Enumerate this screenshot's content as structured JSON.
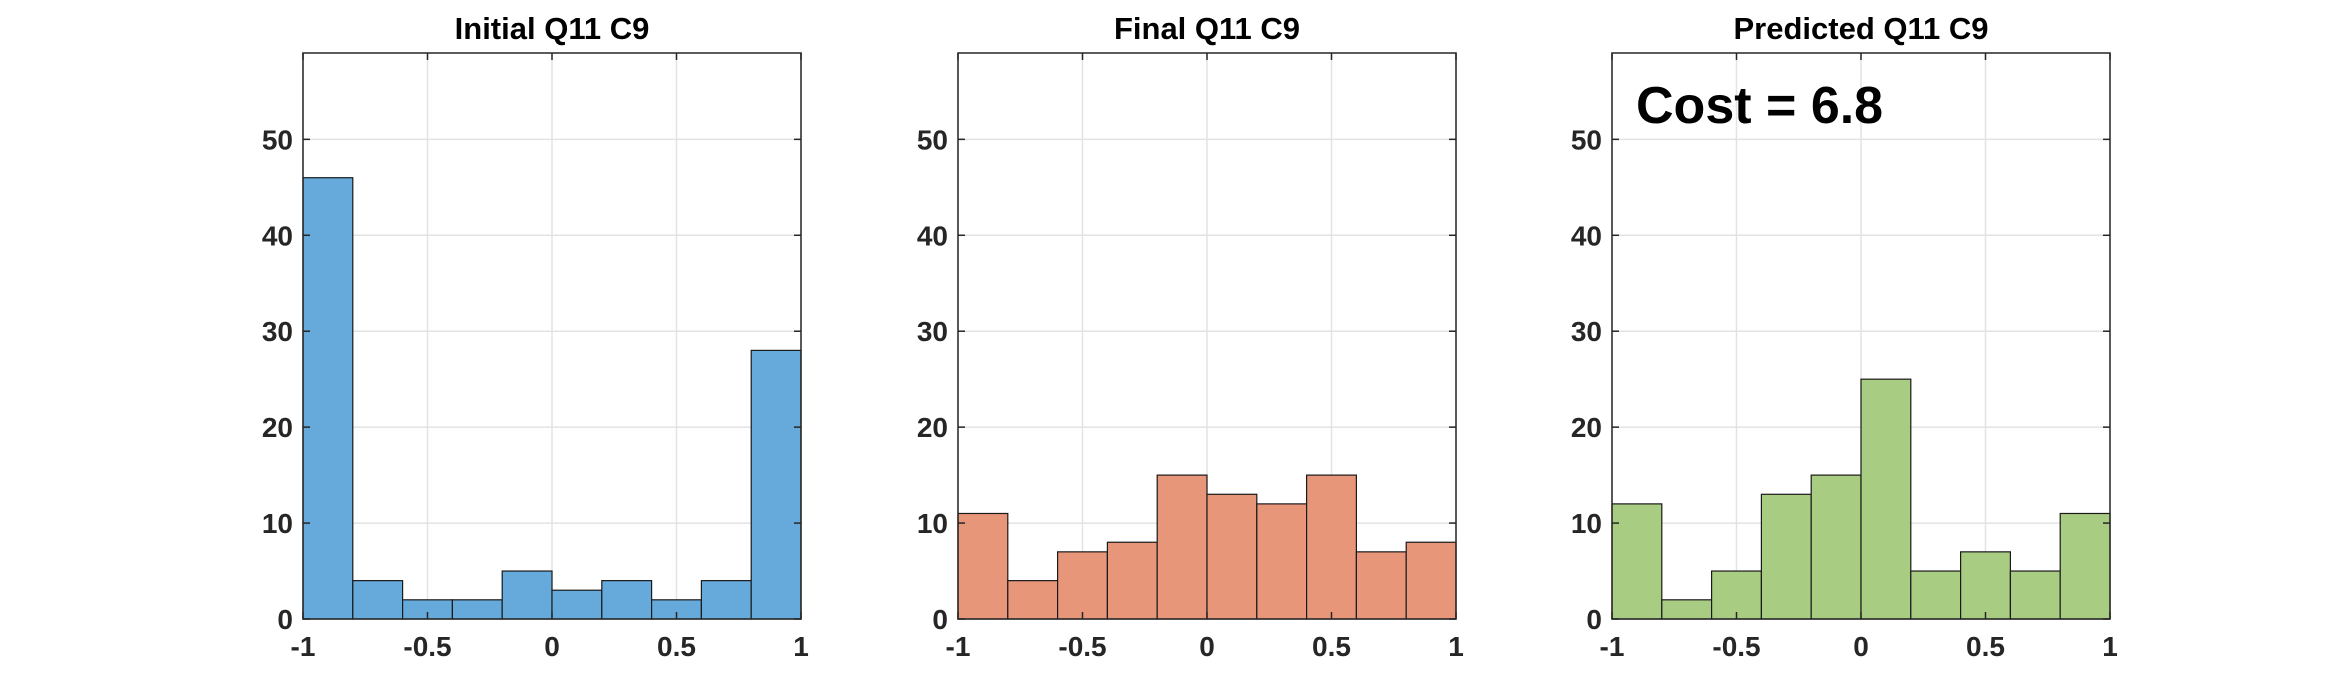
{
  "chart_data": [
    {
      "type": "bar",
      "title": "Initial Q11 C9",
      "bin_edges": [
        -1,
        -0.8,
        -0.6,
        -0.4,
        -0.2,
        0,
        0.2,
        0.4,
        0.6,
        0.8,
        1
      ],
      "values": [
        46,
        4,
        2,
        2,
        5,
        3,
        4,
        2,
        4,
        28
      ],
      "xlim": [
        -1,
        1
      ],
      "ylim": [
        0,
        59
      ],
      "xticks": [
        -1,
        -0.5,
        0,
        0.5,
        1
      ],
      "xtick_labels": [
        "-1",
        "-0.5",
        "0",
        "0.5",
        "1"
      ],
      "yticks": [
        0,
        10,
        20,
        30,
        40,
        50
      ],
      "ytick_labels": [
        "0",
        "10",
        "20",
        "30",
        "40",
        "50"
      ],
      "grid": true,
      "color": "#66aadb",
      "annotation": ""
    },
    {
      "type": "bar",
      "title": "Final Q11 C9",
      "bin_edges": [
        -1,
        -0.8,
        -0.6,
        -0.4,
        -0.2,
        0,
        0.2,
        0.4,
        0.6,
        0.8,
        1
      ],
      "values": [
        11,
        4,
        7,
        8,
        15,
        13,
        12,
        15,
        7,
        8
      ],
      "xlim": [
        -1,
        1
      ],
      "ylim": [
        0,
        59
      ],
      "xticks": [
        -1,
        -0.5,
        0,
        0.5,
        1
      ],
      "xtick_labels": [
        "-1",
        "-0.5",
        "0",
        "0.5",
        "1"
      ],
      "yticks": [
        0,
        10,
        20,
        30,
        40,
        50
      ],
      "ytick_labels": [
        "0",
        "10",
        "20",
        "30",
        "40",
        "50"
      ],
      "grid": true,
      "color": "#e8967a",
      "annotation": ""
    },
    {
      "type": "bar",
      "title": "Predicted Q11 C9",
      "bin_edges": [
        -1,
        -0.8,
        -0.6,
        -0.4,
        -0.2,
        0,
        0.2,
        0.4,
        0.6,
        0.8,
        1
      ],
      "values": [
        12,
        2,
        5,
        13,
        15,
        25,
        5,
        7,
        5,
        11
      ],
      "xlim": [
        -1,
        1
      ],
      "ylim": [
        0,
        59
      ],
      "xticks": [
        -1,
        -0.5,
        0,
        0.5,
        1
      ],
      "xtick_labels": [
        "-1",
        "-0.5",
        "0",
        "0.5",
        "1"
      ],
      "yticks": [
        0,
        10,
        20,
        30,
        40,
        50
      ],
      "ytick_labels": [
        "0",
        "10",
        "20",
        "30",
        "40",
        "50"
      ],
      "grid": true,
      "color": "#a8cc82",
      "annotation": "Cost = 6.8"
    }
  ]
}
